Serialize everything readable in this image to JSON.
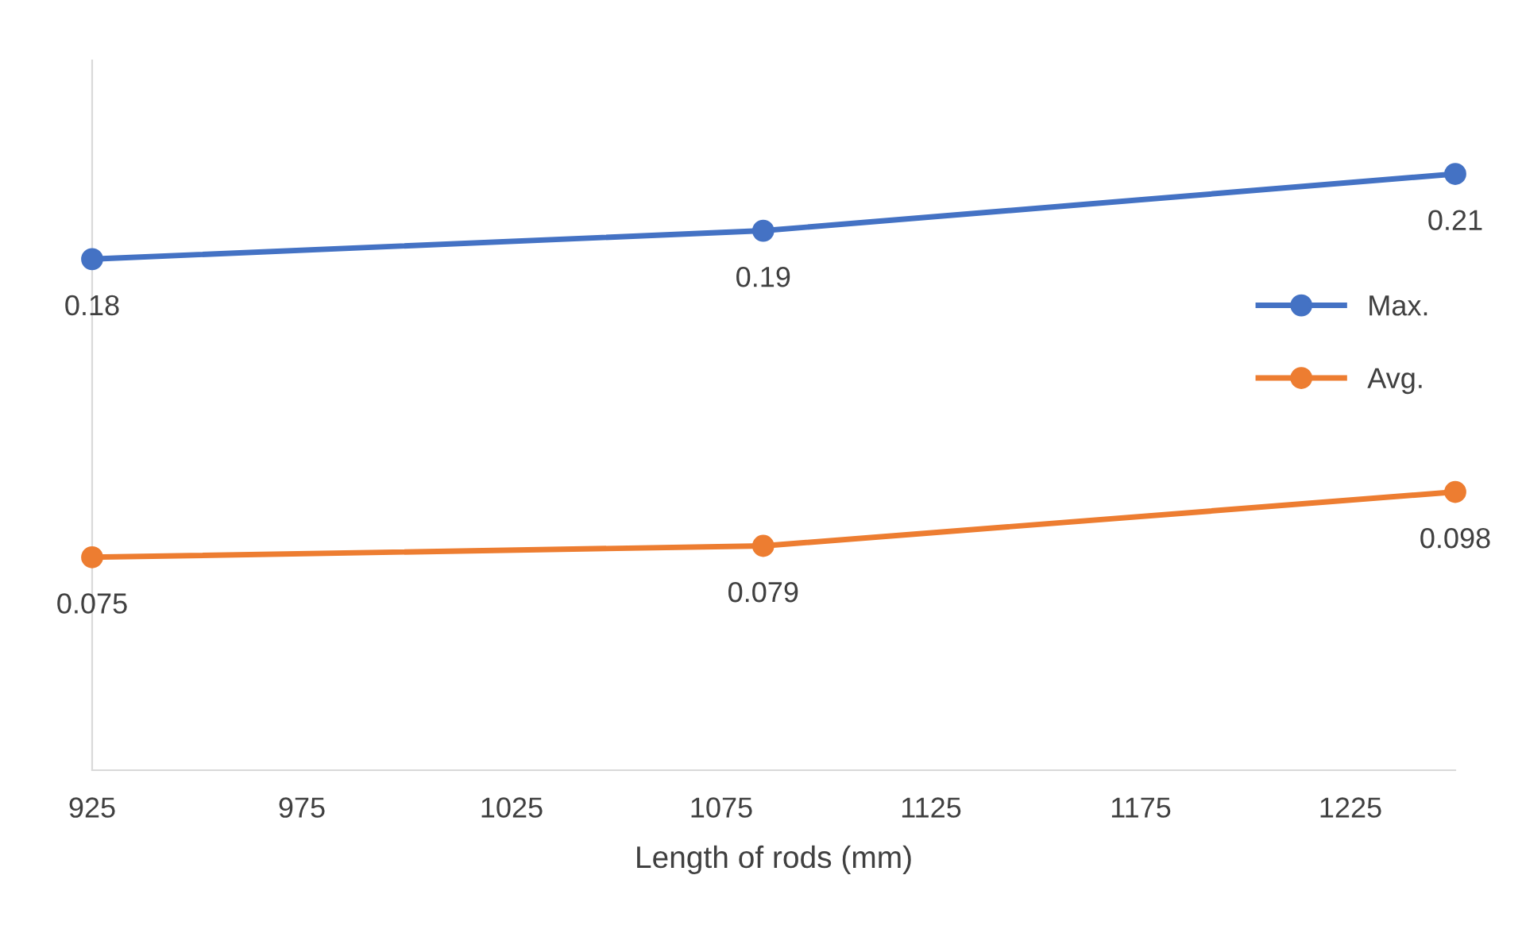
{
  "chart_data": {
    "type": "line",
    "xlabel": "Length of rods (mm)",
    "x": [
      925,
      1085,
      1250
    ],
    "series": [
      {
        "name": "Max.",
        "color": "#4472c4",
        "values": [
          0.18,
          0.19,
          0.21
        ]
      },
      {
        "name": "Avg.",
        "color": "#ed7d31",
        "values": [
          0.075,
          0.079,
          0.098
        ]
      }
    ],
    "xlim": [
      925,
      1250
    ],
    "xticks": [
      925,
      975,
      1025,
      1075,
      1125,
      1175,
      1225
    ],
    "ylim": [
      0,
      0.25
    ],
    "tick_labels": "x",
    "data_labels": true,
    "marker": "circle",
    "line_style": "solid",
    "legend": "right",
    "grid": false
  }
}
